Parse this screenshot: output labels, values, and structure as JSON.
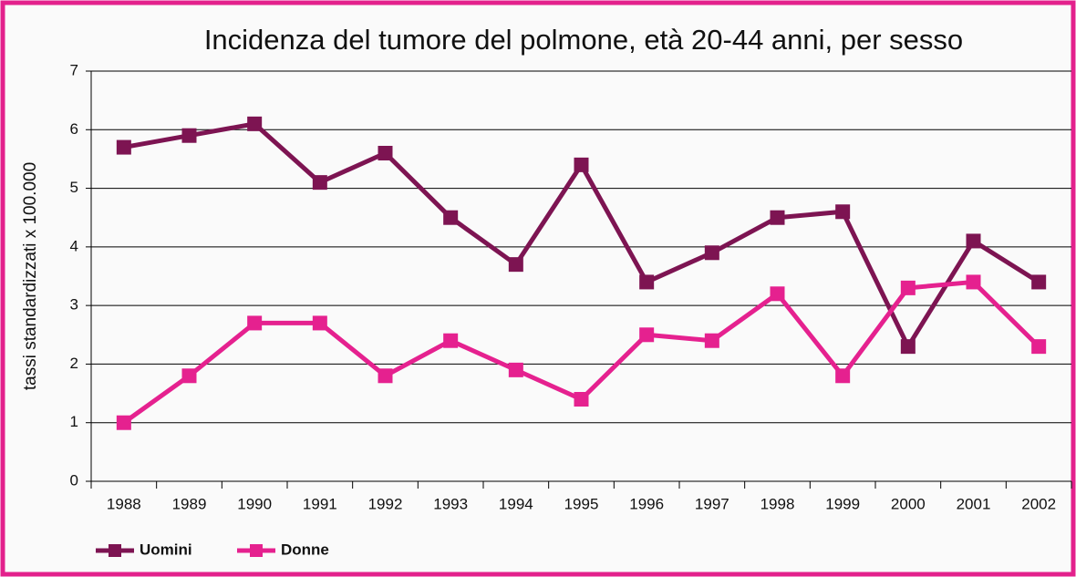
{
  "chart_data": {
    "type": "line",
    "title": "Incidenza del tumore del polmone, età 20-44 anni, per sesso",
    "y_label": "tassi standardizzati x 100.000",
    "categories": [
      "1988",
      "1989",
      "1990",
      "1991",
      "1992",
      "1993",
      "1994",
      "1995",
      "1996",
      "1997",
      "1998",
      "1999",
      "2000",
      "2001",
      "2002"
    ],
    "series": [
      {
        "name": "Uomini",
        "color": "#7d1452",
        "values": [
          5.7,
          5.9,
          6.1,
          5.1,
          5.6,
          4.5,
          3.7,
          5.4,
          3.4,
          3.9,
          4.5,
          4.6,
          2.3,
          4.1,
          3.4
        ]
      },
      {
        "name": "Donne",
        "color": "#e5218f",
        "values": [
          1.0,
          1.8,
          2.7,
          2.7,
          1.8,
          2.4,
          1.9,
          1.4,
          2.5,
          2.4,
          3.2,
          1.8,
          3.3,
          3.4,
          2.3
        ]
      }
    ],
    "ylim": [
      0,
      7
    ],
    "yticks": [
      0,
      1,
      2,
      3,
      4,
      5,
      6,
      7
    ],
    "grid": true,
    "legend": "bottom-left"
  }
}
